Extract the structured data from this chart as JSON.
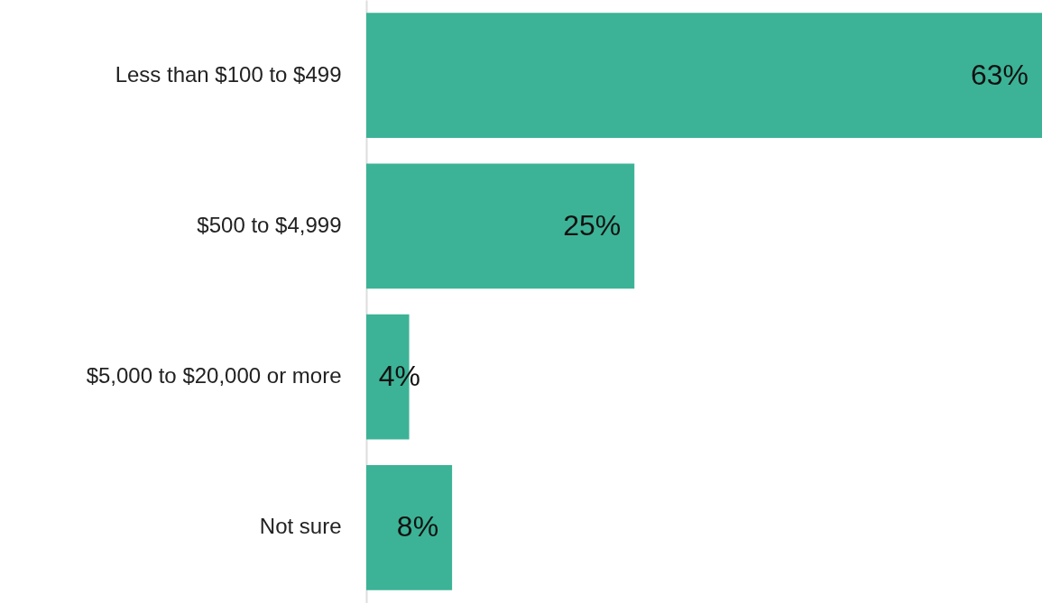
{
  "chart_data": {
    "type": "bar",
    "orientation": "horizontal",
    "categories": [
      "Less than $100 to $499",
      "$500 to $4,999",
      "$5,000 to $20,000 or more",
      "Not sure"
    ],
    "values": [
      63,
      25,
      4,
      8
    ],
    "value_labels": [
      "63%",
      "25%",
      "4%",
      "8%"
    ],
    "color": "#3cb396"
  }
}
